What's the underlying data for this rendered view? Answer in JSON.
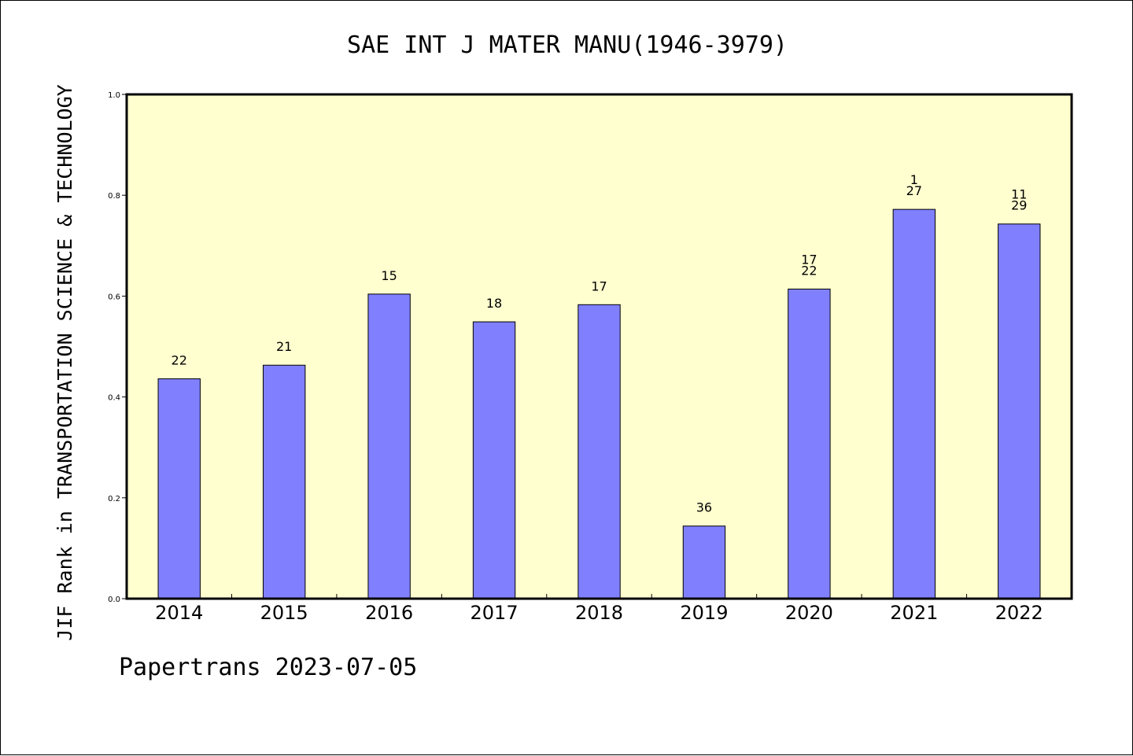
{
  "chart_data": {
    "type": "bar",
    "title": "SAE INT J MATER MANU(1946-3979)",
    "ylabel": "JIF Rank in TRANSPORTATION SCIENCE & TECHNOLOGY",
    "xlabel": "",
    "ylim": [
      0,
      1.0
    ],
    "yticks": [
      "0.0",
      "0.2",
      "0.4",
      "0.6",
      "0.8",
      "1.0"
    ],
    "grid": false,
    "categories": [
      "2014",
      "2015",
      "2016",
      "2017",
      "2018",
      "2019",
      "2020",
      "2021",
      "2022"
    ],
    "values": [
      0.436,
      0.463,
      0.604,
      0.549,
      0.583,
      0.144,
      0.614,
      0.772,
      0.743
    ],
    "labels": [
      [
        "22"
      ],
      [
        "21"
      ],
      [
        "15"
      ],
      [
        "18"
      ],
      [
        "17"
      ],
      [
        "36"
      ],
      [
        "17",
        "22"
      ],
      [
        "1",
        "27"
      ],
      [
        "11",
        "29"
      ]
    ],
    "colors": {
      "bar_fill": "#8080ff",
      "plot_background": "#ffffd0",
      "axis": "#000000"
    }
  },
  "footer": "Papertrans 2023-07-05"
}
